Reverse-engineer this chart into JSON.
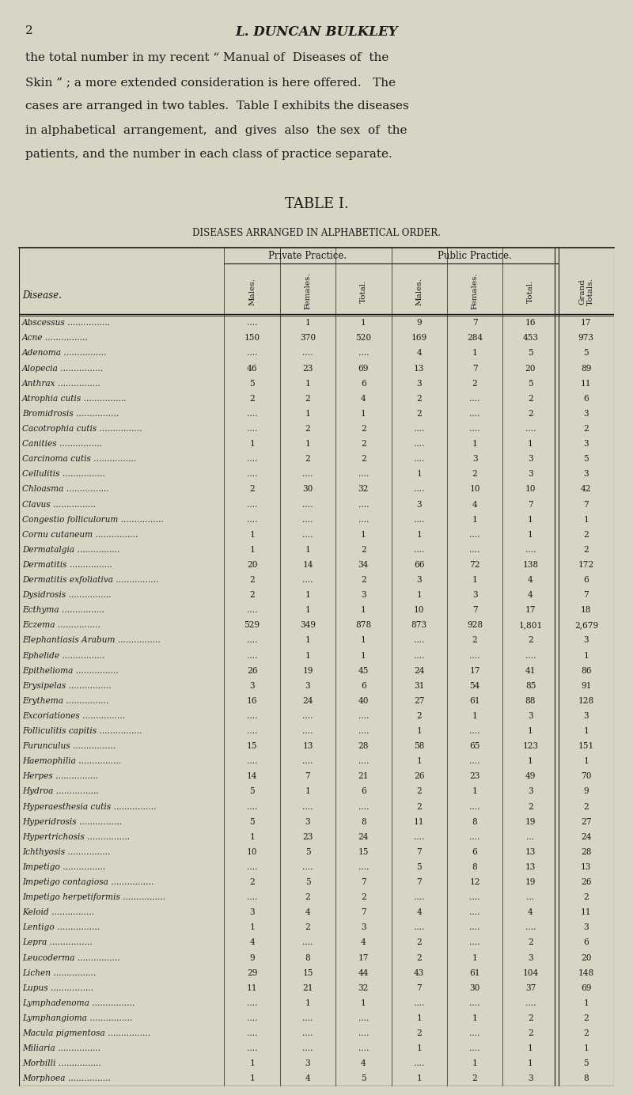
{
  "page_number": "2",
  "page_header": "L. DUNCAN BULKLEY",
  "intro_text": [
    "the total number in my recent “ Manual of  Diseases of  the",
    "Skin ” ; a more extended consideration is here offered.   The",
    "cases are arranged in two tables.  Table I exhibits the diseases",
    "in alphabetical  arrangement,  and  gives  also  the sex  of  the",
    "patients, and the number in each class of practice separate."
  ],
  "table_title": "TABLE I.",
  "table_subtitle": "DISEASES ARRANGED IN ALPHABETICAL ORDER.",
  "col_headers": [
    "Males.",
    "Females.",
    "Total.",
    "Males.",
    "Females.",
    "Total.",
    "Grand\nTotals."
  ],
  "group_headers": [
    "Private Practice.",
    "Public Practice."
  ],
  "disease_col_header": "Disease.",
  "rows": [
    [
      "Abscessus",
      "....",
      "1",
      "1",
      "9",
      "7",
      "16",
      "17"
    ],
    [
      "Acne",
      "150",
      "370",
      "520",
      "169",
      "284",
      "453",
      "973"
    ],
    [
      "Adenoma",
      "....",
      "....",
      "....",
      "4",
      "1",
      "5",
      "5"
    ],
    [
      "Alopecia",
      "46",
      "23",
      "69",
      "13",
      "7",
      "20",
      "89"
    ],
    [
      "Anthrax",
      "5",
      "1",
      "6",
      "3",
      "2",
      "5",
      "11"
    ],
    [
      "Atrophia cutis",
      "2",
      "2",
      "4",
      "2",
      "....",
      "2",
      "6"
    ],
    [
      "Bromidrosis",
      "....",
      "1",
      "1",
      "2",
      "....",
      "2",
      "3"
    ],
    [
      "Cacotrophia cutis",
      "....",
      "2",
      "2",
      "....",
      "....",
      "....",
      "2"
    ],
    [
      "Canities",
      "1",
      "1",
      "2",
      "....",
      "1",
      "1",
      "3"
    ],
    [
      "Carcinoma cutis",
      "....",
      "2",
      "2",
      "....",
      "3",
      "3",
      "5"
    ],
    [
      "Cellulitis",
      "....",
      "....",
      "....",
      "1",
      "2",
      "3",
      "3"
    ],
    [
      "Chloasma",
      "2",
      "30",
      "32",
      "....",
      "10",
      "10",
      "42"
    ],
    [
      "Clavus",
      "....",
      "....",
      "....",
      "3",
      "4",
      "7",
      "7"
    ],
    [
      "Congestio folliculorum",
      "....",
      "....",
      "....",
      "....",
      "1",
      "1",
      "1"
    ],
    [
      "Cornu cutaneum",
      "1",
      "....",
      "1",
      "1",
      "....",
      "1",
      "2"
    ],
    [
      "Dermatalgia",
      "1",
      "1",
      "2",
      "....",
      "....",
      "....",
      "2"
    ],
    [
      "Dermatitis",
      "20",
      "14",
      "34",
      "66",
      "72",
      "138",
      "172"
    ],
    [
      "Dermatitis exfoliativa",
      "2",
      "....",
      "2",
      "3",
      "1",
      "4",
      "6"
    ],
    [
      "Dysidrosis",
      "2",
      "1",
      "3",
      "1",
      "3",
      "4",
      "7"
    ],
    [
      "Ecthyma",
      "....",
      "1",
      "1",
      "10",
      "7",
      "17",
      "18"
    ],
    [
      "Eczema",
      "529",
      "349",
      "878",
      "873",
      "928",
      "1,801",
      "2,679"
    ],
    [
      "Elephantiasis Arabum",
      "....",
      "1",
      "1",
      "....",
      "2",
      "2",
      "3"
    ],
    [
      "Ephelide",
      "....",
      "1",
      "1",
      "....",
      "....",
      "....",
      "1"
    ],
    [
      "Epithelioma",
      "26",
      "19",
      "45",
      "24",
      "17",
      "41",
      "86"
    ],
    [
      "Erysipelas",
      "3",
      "3",
      "6",
      "31",
      "54",
      "85",
      "91"
    ],
    [
      "Erythema",
      "16",
      "24",
      "40",
      "27",
      "61",
      "88",
      "128"
    ],
    [
      "Excoriationes",
      "....",
      "....",
      "....",
      "2",
      "1",
      "3",
      "3"
    ],
    [
      "Folliculitis capitis",
      "....",
      "....",
      "....",
      "1",
      "....",
      "1",
      "1"
    ],
    [
      "Furunculus",
      "15",
      "13",
      "28",
      "58",
      "65",
      "123",
      "151"
    ],
    [
      "Haemophilia",
      "....",
      "....",
      "....",
      "1",
      "....",
      "1",
      "1"
    ],
    [
      "Herpes",
      "14",
      "7",
      "21",
      "26",
      "23",
      "49",
      "70"
    ],
    [
      "Hydroa",
      "5",
      "1",
      "6",
      "2",
      "1",
      "3",
      "9"
    ],
    [
      "Hyperaesthesia cutis",
      "....",
      "....",
      "....",
      "2",
      "....",
      "2",
      "2"
    ],
    [
      "Hyperidrosis",
      "5",
      "3",
      "8",
      "11",
      "8",
      "19",
      "27"
    ],
    [
      "Hypertrichosis",
      "1",
      "23",
      "24",
      "....",
      "....",
      "...",
      "24"
    ],
    [
      "Ichthyosis",
      "10",
      "5",
      "15",
      "7",
      "6",
      "13",
      "28"
    ],
    [
      "Impetigo",
      "....",
      "....",
      "....",
      "5",
      "8",
      "13",
      "13"
    ],
    [
      "Impetigo contagiosa",
      "2",
      "5",
      "7",
      "7",
      "12",
      "19",
      "26"
    ],
    [
      "Impetigo herpetiformis",
      "....",
      "2",
      "2",
      "....",
      "....",
      "...",
      "2"
    ],
    [
      "Keloid",
      "3",
      "4",
      "7",
      "4",
      "....",
      "4",
      "11"
    ],
    [
      "Lentigo",
      "1",
      "2",
      "3",
      "....",
      "....",
      "....",
      "3"
    ],
    [
      "Lepra",
      "4",
      "....",
      "4",
      "2",
      "....",
      "2",
      "6"
    ],
    [
      "Leucoderma",
      "9",
      "8",
      "17",
      "2",
      "1",
      "3",
      "20"
    ],
    [
      "Lichen",
      "29",
      "15",
      "44",
      "43",
      "61",
      "104",
      "148"
    ],
    [
      "Lupus",
      "11",
      "21",
      "32",
      "7",
      "30",
      "37",
      "69"
    ],
    [
      "Lymphadenoma",
      "....",
      "1",
      "1",
      "....",
      "....",
      "....",
      "1"
    ],
    [
      "Lymphangioma",
      "....",
      "....",
      "....",
      "1",
      "1",
      "2",
      "2"
    ],
    [
      "Macula pigmentosa",
      "....",
      "....",
      "....",
      "2",
      "....",
      "2",
      "2"
    ],
    [
      "Miliaria",
      "....",
      "....",
      "....",
      "1",
      "....",
      "1",
      "1"
    ],
    [
      "Morbilli",
      "1",
      "3",
      "4",
      "....",
      "1",
      "1",
      "5"
    ],
    [
      "Morphoea",
      "1",
      "4",
      "5",
      "1",
      "2",
      "3",
      "8"
    ]
  ],
  "bg_color": "#d9d5c5",
  "text_color": "#1a1a1a",
  "font_size_header": 11,
  "font_size_body": 8.5,
  "font_size_title": 13,
  "font_size_intro": 11
}
